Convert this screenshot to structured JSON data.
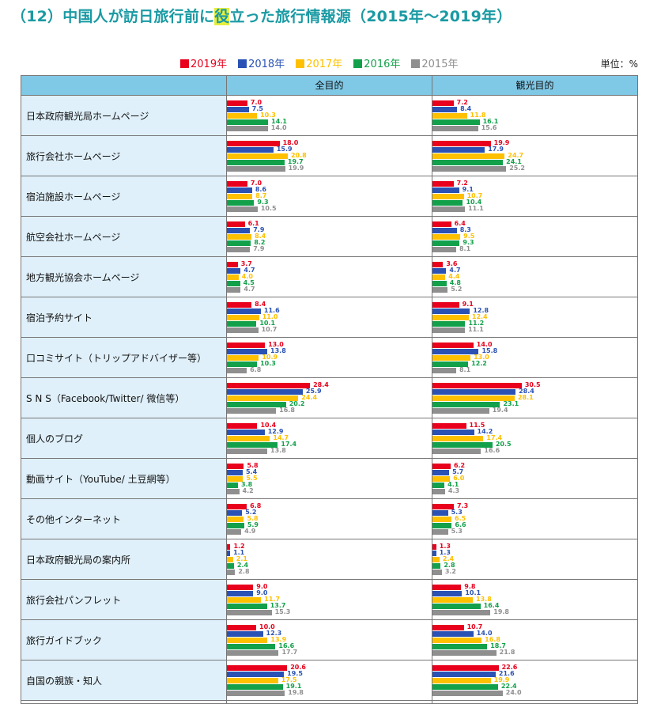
{
  "title_prefix": "（12）中国人が訪日旅行前に",
  "title_highlight": "役",
  "title_suffix": "立った旅行情報源（2015年〜2019年）",
  "unit": "単位：%",
  "colors": {
    "2019年": "#e8001c",
    "2018年": "#2a52b4",
    "2017年": "#ffc000",
    "2016年": "#12a14a",
    "2015年": "#8f8f8f"
  },
  "chart_data": {
    "type": "bar",
    "orientation": "horizontal",
    "columns": [
      "全目的",
      "観光目的"
    ],
    "series_names": [
      "2019年",
      "2018年",
      "2017年",
      "2016年",
      "2015年"
    ],
    "categories": [
      "日本政府観光局ホームページ",
      "旅行会社ホームページ",
      "宿泊施設ホームページ",
      "航空会社ホームページ",
      "地方観光協会ホームページ",
      "宿泊予約サイト",
      "口コミサイト（トリップアドバイザー等）",
      "S N S（Facebook/Twitter/ 微信等）",
      "個人のブログ",
      "動画サイト（YouTube/ 土豆網等）",
      "その他インターネット",
      "日本政府観光局の案内所",
      "旅行会社パンフレット",
      "旅行ガイドブック",
      "自国の親族・知人"
    ],
    "values": {
      "全目的": [
        [
          7.0,
          7.5,
          10.3,
          14.1,
          14.0
        ],
        [
          18.0,
          15.9,
          20.8,
          19.7,
          19.9
        ],
        [
          7.0,
          8.6,
          8.7,
          9.3,
          10.5
        ],
        [
          6.1,
          7.9,
          8.4,
          8.2,
          7.9
        ],
        [
          3.7,
          4.7,
          4.0,
          4.5,
          4.7
        ],
        [
          8.4,
          11.6,
          11.0,
          10.1,
          10.7
        ],
        [
          13.0,
          13.8,
          10.9,
          10.3,
          6.8
        ],
        [
          28.4,
          25.9,
          24.4,
          20.2,
          16.8
        ],
        [
          10.4,
          12.9,
          14.7,
          17.4,
          13.8
        ],
        [
          5.8,
          5.4,
          5.5,
          3.8,
          4.2
        ],
        [
          6.8,
          5.2,
          5.8,
          5.9,
          4.9
        ],
        [
          1.2,
          1.1,
          2.1,
          2.4,
          2.8
        ],
        [
          9.0,
          9.0,
          11.7,
          13.7,
          15.3
        ],
        [
          10.0,
          12.3,
          13.9,
          16.6,
          17.7
        ],
        [
          20.6,
          19.5,
          17.5,
          19.1,
          19.8
        ]
      ],
      "観光目的": [
        [
          7.2,
          8.4,
          11.8,
          16.1,
          15.6
        ],
        [
          19.9,
          17.9,
          24.7,
          24.1,
          25.2
        ],
        [
          7.2,
          9.1,
          10.7,
          10.4,
          11.1
        ],
        [
          6.4,
          8.3,
          9.5,
          9.3,
          8.1
        ],
        [
          3.6,
          4.7,
          4.4,
          4.8,
          5.2
        ],
        [
          9.1,
          12.8,
          12.4,
          11.2,
          11.1
        ],
        [
          14.0,
          15.8,
          13.0,
          12.2,
          8.1
        ],
        [
          30.5,
          28.4,
          28.1,
          23.1,
          19.4
        ],
        [
          11.5,
          14.2,
          17.4,
          20.5,
          16.6
        ],
        [
          6.2,
          5.7,
          6.0,
          4.1,
          4.3
        ],
        [
          7.3,
          5.3,
          6.5,
          6.6,
          5.3
        ],
        [
          1.3,
          1.3,
          2.4,
          2.8,
          3.2
        ],
        [
          9.8,
          10.1,
          13.8,
          16.4,
          19.8
        ],
        [
          10.7,
          14.0,
          16.8,
          18.7,
          21.8
        ],
        [
          22.6,
          21.6,
          19.9,
          22.4,
          24.0
        ]
      ]
    }
  }
}
